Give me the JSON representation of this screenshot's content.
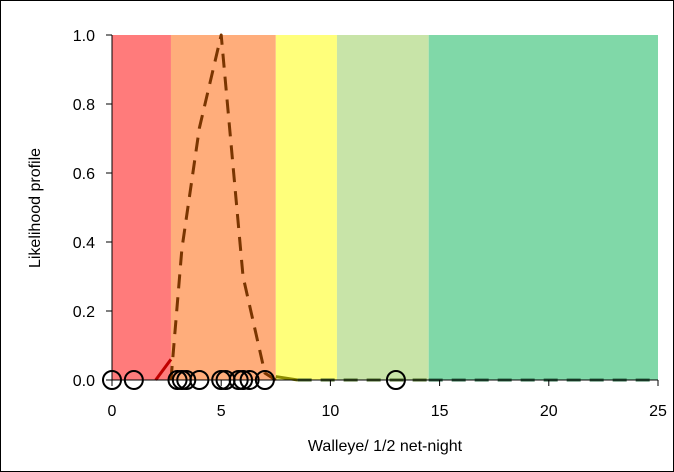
{
  "chart_data": {
    "type": "area",
    "xlabel": "Walleye/ 1/2 net-night",
    "ylabel": "Likelihood profile",
    "xlim": [
      0,
      25
    ],
    "ylim": [
      0,
      1
    ],
    "x_ticks": [
      0,
      5,
      10,
      15,
      20,
      25
    ],
    "y_ticks": [
      "0.0",
      "0.2",
      "0.4",
      "0.6",
      "0.8",
      "1.0"
    ],
    "grid": false,
    "bands": [
      {
        "x0": 0.0,
        "x1": 2.7,
        "color": "#ff7b7b"
      },
      {
        "x0": 2.7,
        "x1": 7.5,
        "color": "#ffad7b"
      },
      {
        "x0": 7.5,
        "x1": 10.3,
        "color": "#ffff7b"
      },
      {
        "x0": 10.3,
        "x1": 14.5,
        "color": "#c8e4a8"
      },
      {
        "x0": 14.5,
        "x1": 25.0,
        "color": "#80d8a8"
      }
    ],
    "series": [
      {
        "style": "dashed",
        "color": "#7a3500",
        "x": [
          2.7,
          3.2,
          4.0,
          5.0,
          6.0,
          7.0,
          7.5
        ],
        "y": [
          0.0,
          0.38,
          0.73,
          1.0,
          0.3,
          0.02,
          0.0
        ]
      },
      {
        "style": "solid",
        "color": "#c00000",
        "x": [
          2.0,
          2.7
        ],
        "y": [
          0.0,
          0.06
        ]
      },
      {
        "style": "solid",
        "color": "#8c8c00",
        "x": [
          7.5,
          8.5
        ],
        "y": [
          0.01,
          0.0
        ]
      },
      {
        "style": "dashed",
        "color": "#4a6a2a",
        "x": [
          8.5,
          14.5
        ],
        "y": [
          0.0,
          0.0
        ]
      },
      {
        "style": "dashed",
        "color": "#2e6b4a",
        "x": [
          14.5,
          25.0
        ],
        "y": [
          0.0,
          0.0
        ]
      }
    ],
    "observations": {
      "color": "#000000",
      "x": [
        0,
        1,
        3,
        3.2,
        3.4,
        4,
        5,
        5.2,
        5.8,
        6,
        6.3,
        7,
        13
      ],
      "y": [
        0,
        0,
        0,
        0,
        0,
        0,
        0,
        0,
        0,
        0,
        0,
        0,
        0
      ]
    }
  }
}
